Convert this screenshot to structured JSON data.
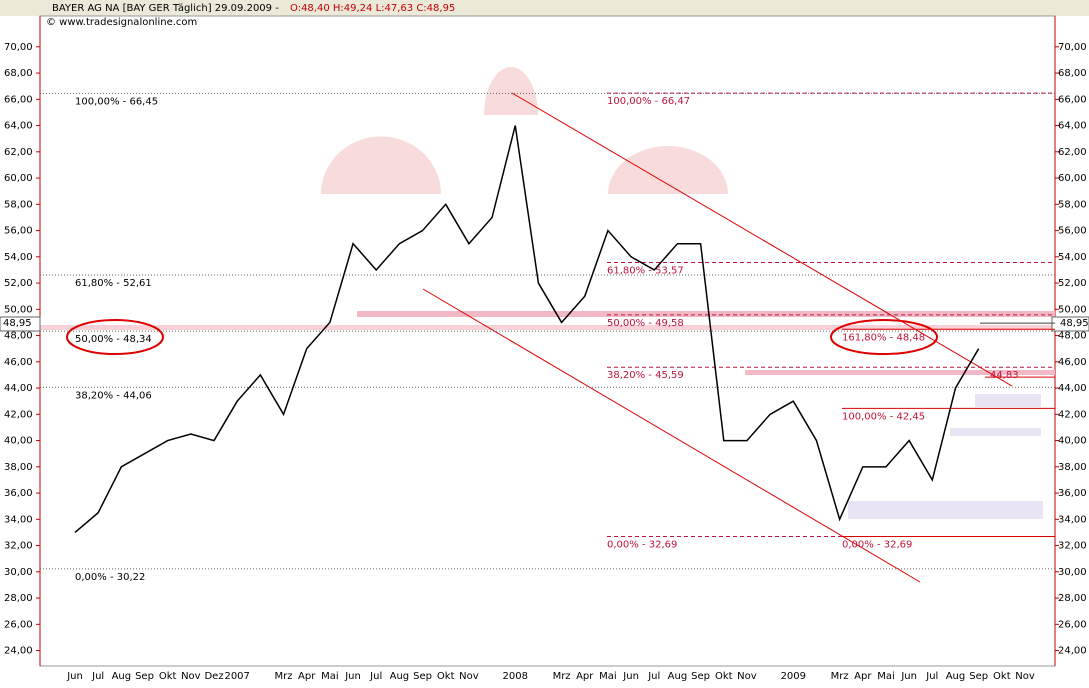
{
  "chart_data": {
    "type": "line",
    "title": "BAYER AG  NA [BAY GER  Täglich] 29.09.2009 -",
    "ohlc": "O:48,40 H:49,24 L:47,63 C:48,95",
    "source": "© www.tradesignalonline.com",
    "last_label": "48,95",
    "last_value": 48.95,
    "categories": [
      "Jun",
      "Jul",
      "Aug",
      "Sep",
      "Okt",
      "Nov",
      "Dez",
      "2007",
      null,
      "Mrz",
      "Apr",
      "Mai",
      "Jun",
      "Jul",
      "Aug",
      "Sep",
      "Okt",
      "Nov",
      null,
      "2008",
      null,
      "Mrz",
      "Apr",
      "Mai",
      "Jun",
      "Jul",
      "Aug",
      "Sep",
      "Okt",
      "Nov",
      null,
      "2009",
      null,
      "Mrz",
      "Apr",
      "Mai",
      "Jun",
      "Jul",
      "Aug",
      "Sep",
      "Okt",
      "Nov"
    ],
    "series": [
      {
        "name": "BAYER AG",
        "color": "#000000",
        "values": [
          33,
          34.5,
          38,
          39,
          40,
          40.5,
          40,
          43,
          45,
          42,
          47,
          49,
          55,
          53,
          55,
          56,
          58,
          55,
          57,
          64,
          52,
          49,
          51,
          56,
          54,
          53,
          55,
          55,
          40,
          40,
          42,
          43,
          40,
          34,
          38,
          38,
          40,
          37,
          44,
          47,
          null,
          null
        ]
      }
    ],
    "ylim": [
      22.9,
      70.9
    ],
    "yticks": [
      {
        "value": 24,
        "label": "24,00"
      },
      {
        "value": 26,
        "label": "26,00"
      },
      {
        "value": 28,
        "label": "28,00"
      },
      {
        "value": 30,
        "label": "30,00"
      },
      {
        "value": 32,
        "label": "32,00"
      },
      {
        "value": 34,
        "label": "34,00"
      },
      {
        "value": 36,
        "label": "36,00"
      },
      {
        "value": 38,
        "label": "38,00"
      },
      {
        "value": 40,
        "label": "40,00"
      },
      {
        "value": 42,
        "label": "42,00"
      },
      {
        "value": 44,
        "label": "44,00"
      },
      {
        "value": 46,
        "label": "46,00"
      },
      {
        "value": 48,
        "label": "48,00"
      },
      {
        "value": 50,
        "label": "50,00"
      },
      {
        "value": 52,
        "label": "52,00"
      },
      {
        "value": 54,
        "label": "54,00"
      },
      {
        "value": 56,
        "label": "56,00"
      },
      {
        "value": 58,
        "label": "58,00"
      },
      {
        "value": 60,
        "label": "60,00"
      },
      {
        "value": 62,
        "label": "62,00"
      },
      {
        "value": 64,
        "label": "64,00"
      },
      {
        "value": 66,
        "label": "66,00"
      },
      {
        "value": 68,
        "label": "68,00"
      },
      {
        "value": 70,
        "label": "70,00"
      }
    ],
    "fib_left": [
      {
        "label": "100,00% - 66,45",
        "value": 66.45
      },
      {
        "label": "61,80% - 52,61",
        "value": 52.61
      },
      {
        "label": "50,00% - 48,34",
        "value": 48.34
      },
      {
        "label": "38,20% - 44,06",
        "value": 44.06
      },
      {
        "label": "0,00% - 30,22",
        "value": 30.22
      }
    ],
    "fib_mid": [
      {
        "label": "100,00% - 66,47",
        "value": 66.47
      },
      {
        "label": "61,80% - 53,57",
        "value": 53.57
      },
      {
        "label": "50,00% - 49,58",
        "value": 49.58
      },
      {
        "label": "38,20% - 45,59",
        "value": 45.59
      },
      {
        "label": "0,00% - 32,69",
        "value": 32.69
      }
    ],
    "fib_right": [
      {
        "label": "161,80% - 48,48",
        "value": 48.48
      },
      {
        "label": "100,00% - 42,45",
        "value": 42.45
      },
      {
        "label": "0,00% - 32,69",
        "value": 32.69
      }
    ],
    "target_label": "44,83",
    "target_value": 44.83
  }
}
